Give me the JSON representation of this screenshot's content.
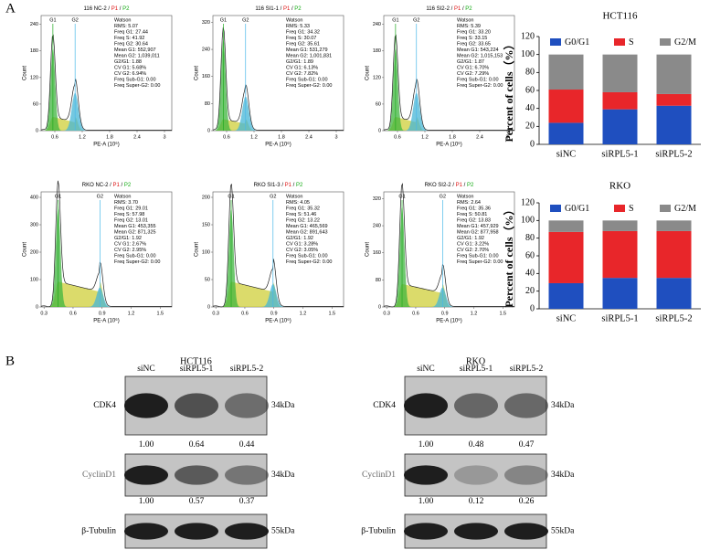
{
  "panel_a": {
    "label": "A",
    "flow": [
      {
        "sample": "116 NC-2",
        "separator": "/",
        "gates": [
          "P1",
          "P2"
        ],
        "peaks": [
          "G1",
          "G2"
        ],
        "x_label": "PE-A (10⁶)",
        "y_label": "Count",
        "xlim": [
          0.3,
          3.16
        ],
        "xticks": [
          0.6,
          1.2,
          1.8,
          2.4,
          3.0
        ],
        "ylim": [
          0,
          260
        ],
        "yticks": [
          0,
          60,
          120,
          180,
          240
        ],
        "stats": [
          "Watson",
          "RMS: 5.07",
          "Freq G1: 27.44",
          "Freq S: 41.92",
          "Freq G2: 30.64",
          "Mean G1: 552,907",
          "Mean G2: 1,039,011",
          "G2/G1: 1.88",
          "CV G1: 5.68%",
          "CV G2: 6.94%",
          "Freq Sub-G1: 0.00",
          "Freq Super-G2: 0.00"
        ]
      },
      {
        "sample": "116 SI1-1",
        "separator": "/",
        "gates": [
          "P1",
          "P2"
        ],
        "peaks": [
          "G1",
          "G2"
        ],
        "x_label": "PE-A (10⁶)",
        "y_label": "Count",
        "xlim": [
          0.3,
          3.16
        ],
        "xticks": [
          0.6,
          1.2,
          1.8,
          2.4,
          3.0
        ],
        "ylim": [
          0,
          340
        ],
        "yticks": [
          0,
          80,
          160,
          240,
          320
        ],
        "stats": [
          "Watson",
          "RMS: 5.33",
          "Freq G1: 34.32",
          "Freq S: 30.07",
          "Freq G2: 35.61",
          "Mean G1: 531,279",
          "Mean G2: 1,001,831",
          "G2/G1: 1.89",
          "CV G1: 6.13%",
          "CV G2: 7.82%",
          "Freq Sub-G1: 0.00",
          "Freq Super-G2: 0.00"
        ]
      },
      {
        "sample": "116 SI2-2",
        "separator": "/",
        "gates": [
          "P1",
          "P2"
        ],
        "peaks": [
          "G1",
          "G2"
        ],
        "x_label": "PE-A (10⁶)",
        "y_label": "Count",
        "xlim": [
          0.3,
          3.16
        ],
        "xticks": [
          0.6,
          1.2,
          1.8,
          2.4,
          3.0
        ],
        "ylim": [
          0,
          260
        ],
        "yticks": [
          0,
          60,
          120,
          180,
          240
        ],
        "stats": [
          "Watson",
          "RMS: 5.39",
          "Freq G1: 33.20",
          "Freq S: 33.15",
          "Freq G2: 33.65",
          "Mean G1: 543,224",
          "Mean G2: 1,015,153",
          "G2/G1: 1.87",
          "CV G1: 6.70%",
          "CV G2: 7.29%",
          "Freq Sub-G1: 0.00",
          "Freq Super-G2: 0.00"
        ]
      },
      {
        "sample": "RKO NC-2",
        "separator": "/",
        "gates": [
          "P1",
          "P2"
        ],
        "peaks": [
          "G1",
          "G2"
        ],
        "x_label": "PE-A (10⁶)",
        "y_label": "Count",
        "xlim": [
          0.27,
          1.62
        ],
        "xticks": [
          0.3,
          0.6,
          0.9,
          1.2,
          1.5
        ],
        "ylim": [
          0,
          420
        ],
        "yticks": [
          0,
          100,
          200,
          300,
          400
        ],
        "stats": [
          "Watson",
          "RMS: 3.70",
          "Freq G1: 29.01",
          "Freq S: 57.98",
          "Freq G2: 13.01",
          "Mean G1: 453,355",
          "Mean G2: 871,325",
          "G2/G1: 1.92",
          "CV G1: 2.67%",
          "CV G2: 2.95%",
          "Freq Sub-G1: 0.00",
          "Freq Super-G2: 0.00"
        ]
      },
      {
        "sample": "RKO SI1-3",
        "separator": "/",
        "gates": [
          "P1",
          "P2"
        ],
        "peaks": [
          "G1",
          "G2"
        ],
        "x_label": "PE-A (10⁶)",
        "y_label": "Count",
        "xlim": [
          0.27,
          1.62
        ],
        "xticks": [
          0.3,
          0.6,
          0.9,
          1.2,
          1.5
        ],
        "ylim": [
          0,
          210
        ],
        "yticks": [
          0,
          50,
          100,
          150,
          200
        ],
        "stats": [
          "Watson",
          "RMS: 4.05",
          "Freq G1: 35.32",
          "Freq S: 51.46",
          "Freq G2: 13.22",
          "Mean G1: 465,569",
          "Mean G2: 891,643",
          "G2/G1: 1.92",
          "CV G1: 3.28%",
          "CV G2: 3.05%",
          "Freq Sub-G1: 0.00",
          "Freq Super-G2: 0.00"
        ]
      },
      {
        "sample": "RKO SI2-2",
        "separator": "/",
        "gates": [
          "P1",
          "P2"
        ],
        "peaks": [
          "G1",
          "G2"
        ],
        "x_label": "PE-A (10⁶)",
        "y_label": "Count",
        "xlim": [
          0.27,
          1.62
        ],
        "xticks": [
          0.3,
          0.6,
          0.9,
          1.2,
          1.5
        ],
        "ylim": [
          0,
          340
        ],
        "yticks": [
          0,
          80,
          160,
          240,
          320
        ],
        "stats": [
          "Watson",
          "RMS: 2.64",
          "Freq G1: 35.36",
          "Freq S: 50.81",
          "Freq G2: 13.83",
          "Mean G1: 457,929",
          "Mean G2: 877,958",
          "G2/G1: 1.92",
          "CV G1: 3.22%",
          "CV G2: 2.70%",
          "Freq Sub-G1: 0.00",
          "Freq Super-G2: 0.00"
        ]
      }
    ],
    "bar_charts": [
      {
        "type": "bar",
        "stacked": true,
        "title": "HCT116",
        "y_label": "Percent of cells（%）",
        "categories": [
          "siNC",
          "siRPL5-1",
          "siRPL5-2"
        ],
        "ylim": [
          0,
          120
        ],
        "yticks": [
          0,
          20,
          40,
          60,
          80,
          100,
          120
        ],
        "series": [
          {
            "name": "G0/G1",
            "color": "#1f4fbf",
            "values": [
              24,
              39,
              43
            ]
          },
          {
            "name": "S",
            "color": "#e8262a",
            "values": [
              37,
              19,
              13
            ]
          },
          {
            "name": "G2/M",
            "color": "#8a8a8a",
            "values": [
              39,
              42,
              44
            ]
          }
        ]
      },
      {
        "type": "bar",
        "stacked": true,
        "title": "RKO",
        "y_label": "Percent of cells（%）",
        "categories": [
          "siNC",
          "siRPL5-1",
          "siRPL5-2"
        ],
        "ylim": [
          0,
          120
        ],
        "yticks": [
          0,
          20,
          40,
          60,
          80,
          100,
          120
        ],
        "series": [
          {
            "name": "G0/G1",
            "color": "#1f4fbf",
            "values": [
              29,
              35,
              35
            ]
          },
          {
            "name": "S",
            "color": "#e8262a",
            "values": [
              58,
              53,
              53
            ]
          },
          {
            "name": "G2/M",
            "color": "#8a8a8a",
            "values": [
              13,
              12,
              12
            ]
          }
        ]
      }
    ]
  },
  "panel_b": {
    "label": "B",
    "blots": [
      {
        "title": "HCT116",
        "lanes": [
          "siNC",
          "siRPL5-1",
          "siRPL5-2"
        ],
        "rows": [
          {
            "protein": "CDK4",
            "size": "34kDa",
            "ratios": [
              "1.00",
              "0.64",
              "0.44"
            ]
          },
          {
            "protein": "CyclinD1",
            "size": "34kDa",
            "ratios": [
              "1.00",
              "0.57",
              "0.37"
            ]
          },
          {
            "protein": "β-Tubulin",
            "size": "55kDa"
          }
        ]
      },
      {
        "title": "RKO",
        "lanes": [
          "siNC",
          "siRPL5-1",
          "siRPL5-2"
        ],
        "rows": [
          {
            "protein": "CDK4",
            "size": "34kDa",
            "ratios": [
              "1.00",
              "0.48",
              "0.47"
            ]
          },
          {
            "protein": "CyclinD1",
            "size": "34kDa",
            "ratios": [
              "1.00",
              "0.12",
              "0.26"
            ]
          },
          {
            "protein": "β-Tubulin",
            "size": "55kDa"
          }
        ]
      }
    ]
  }
}
